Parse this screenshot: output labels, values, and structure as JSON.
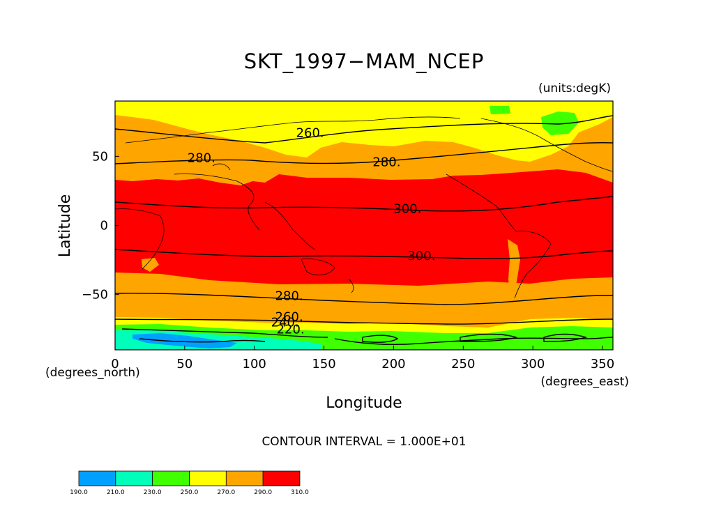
{
  "title": "SKT_1997−MAM_NCEP",
  "units_note": "(units:degK)",
  "contour_interval": "CONTOUR INTERVAL = 1.000E+01",
  "x_axis": {
    "label": "Longitude",
    "units": "(degrees_east)",
    "ticks": [
      "0",
      "50",
      "100",
      "150",
      "200",
      "250",
      "300",
      "350"
    ],
    "tick_values": [
      0,
      50,
      100,
      150,
      200,
      250,
      300,
      350
    ],
    "range": [
      0,
      357.5
    ]
  },
  "y_axis": {
    "label": "Latitude",
    "units": "(degrees_north)",
    "ticks": [
      "50",
      "0",
      "−50"
    ],
    "tick_values": [
      50,
      0,
      -50
    ],
    "range": [
      -90,
      90
    ]
  },
  "contour_labels": [
    {
      "text": "260.",
      "lon": 140,
      "lat": 67
    },
    {
      "text": "280.",
      "lon": 62,
      "lat": 49
    },
    {
      "text": "280.",
      "lon": 195,
      "lat": 46
    },
    {
      "text": "300.",
      "lon": 210,
      "lat": 12
    },
    {
      "text": "300.",
      "lon": 220,
      "lat": -22
    },
    {
      "text": "280.",
      "lon": 125,
      "lat": -51
    },
    {
      "text": "260.",
      "lon": 125,
      "lat": -66
    },
    {
      "text": "240.",
      "lon": 122,
      "lat": -70
    },
    {
      "text": "220.",
      "lon": 126,
      "lat": -75
    }
  ],
  "colorbar": {
    "levels": [
      "190.0",
      "210.0",
      "230.0",
      "250.0",
      "270.0",
      "290.0",
      "310.0"
    ],
    "colors": [
      "#00a0ff",
      "#00ffb8",
      "#40ff00",
      "#ffff00",
      "#ffa500",
      "#ff0000"
    ]
  },
  "colors": {
    "band_190_210": "#00a0ff",
    "band_210_230": "#00ffb8",
    "band_230_250": "#40ff00",
    "band_250_270": "#ffff00",
    "band_270_290": "#ffa500",
    "band_290_310": "#ff0000"
  }
}
